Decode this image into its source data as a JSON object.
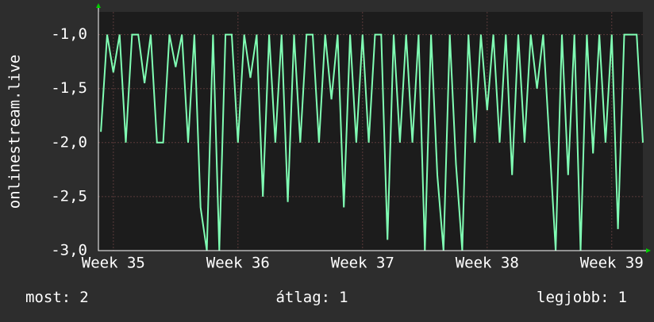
{
  "chart_data": {
    "type": "line",
    "y_label": "onlinestream.live",
    "x": [
      34.9,
      34.95,
      35,
      35.05,
      35.1,
      35.15,
      35.2,
      35.25,
      35.3,
      35.35,
      35.4,
      35.45,
      35.5,
      35.55,
      35.6,
      35.65,
      35.7,
      35.75,
      35.8,
      35.85,
      35.9,
      35.95,
      36,
      36.05,
      36.1,
      36.15,
      36.2,
      36.25,
      36.3,
      36.35,
      36.4,
      36.45,
      36.5,
      36.55,
      36.6,
      36.65,
      36.7,
      36.75,
      36.8,
      36.85,
      36.9,
      36.95,
      37,
      37.05,
      37.1,
      37.15,
      37.2,
      37.25,
      37.3,
      37.35,
      37.4,
      37.45,
      37.5,
      37.55,
      37.6,
      37.65,
      37.7,
      37.75,
      37.8,
      37.85,
      37.9,
      37.95,
      38,
      38.05,
      38.1,
      38.15,
      38.2,
      38.25,
      38.3,
      38.35,
      38.4,
      38.45,
      38.5,
      38.55,
      38.6,
      38.65,
      38.7,
      38.75,
      38.8,
      38.85,
      38.9,
      38.95,
      39,
      39.05,
      39.1,
      39.15,
      39.2,
      39.25
    ],
    "series": [
      {
        "color": "#80ffb4",
        "values": [
          -1.9,
          -1.0,
          -1.35,
          -1.0,
          -2.0,
          -1.0,
          -1.0,
          -1.45,
          -1.0,
          -2.0,
          -2.0,
          -1.0,
          -1.3,
          -1.0,
          -2.0,
          -1.0,
          -2.6,
          -3.0,
          -1.0,
          -3.0,
          -1.0,
          -1.0,
          -2.0,
          -1.0,
          -1.4,
          -1.0,
          -2.5,
          -1.0,
          -2.0,
          -1.0,
          -2.55,
          -1.0,
          -2.0,
          -1.0,
          -1.0,
          -2.0,
          -1.0,
          -1.6,
          -1.0,
          -2.6,
          -1.0,
          -2.0,
          -1.0,
          -2.0,
          -1.0,
          -1.0,
          -2.9,
          -1.0,
          -2.0,
          -1.0,
          -2.0,
          -1.0,
          -3.0,
          -1.0,
          -2.3,
          -3.0,
          -1.0,
          -2.2,
          -3.0,
          -1.0,
          -2.0,
          -1.0,
          -1.7,
          -1.0,
          -2.0,
          -1.0,
          -2.3,
          -1.0,
          -2.0,
          -1.0,
          -1.5,
          -1.0,
          -2.0,
          -3.0,
          -1.0,
          -2.3,
          -1.0,
          -3.0,
          -1.0,
          -2.1,
          -1.0,
          -2.0,
          -1.0,
          -2.8,
          -1.0,
          -1.0,
          -1.0,
          -2.0
        ]
      }
    ],
    "xlim": [
      34.88,
      39.25
    ],
    "ylim": [
      -3.0,
      -0.79
    ],
    "xticks": [
      {
        "value": 35,
        "label": "Week 35"
      },
      {
        "value": 36,
        "label": "Week 36"
      },
      {
        "value": 37,
        "label": "Week 37"
      },
      {
        "value": 38,
        "label": "Week 38"
      },
      {
        "value": 39,
        "label": "Week 39"
      }
    ],
    "yticks": [
      {
        "value": -3,
        "label": "-3,0"
      },
      {
        "value": -2.5,
        "label": "-2,5"
      },
      {
        "value": -2,
        "label": "-2,0"
      },
      {
        "value": -1.5,
        "label": "-1,5"
      },
      {
        "value": -1,
        "label": "-1,0"
      }
    ],
    "grid": true
  },
  "stats": [
    {
      "label": "most:",
      "value": 2
    },
    {
      "label": "átlag:",
      "value": 1
    },
    {
      "label": "legjobb:",
      "value": 1
    }
  ]
}
